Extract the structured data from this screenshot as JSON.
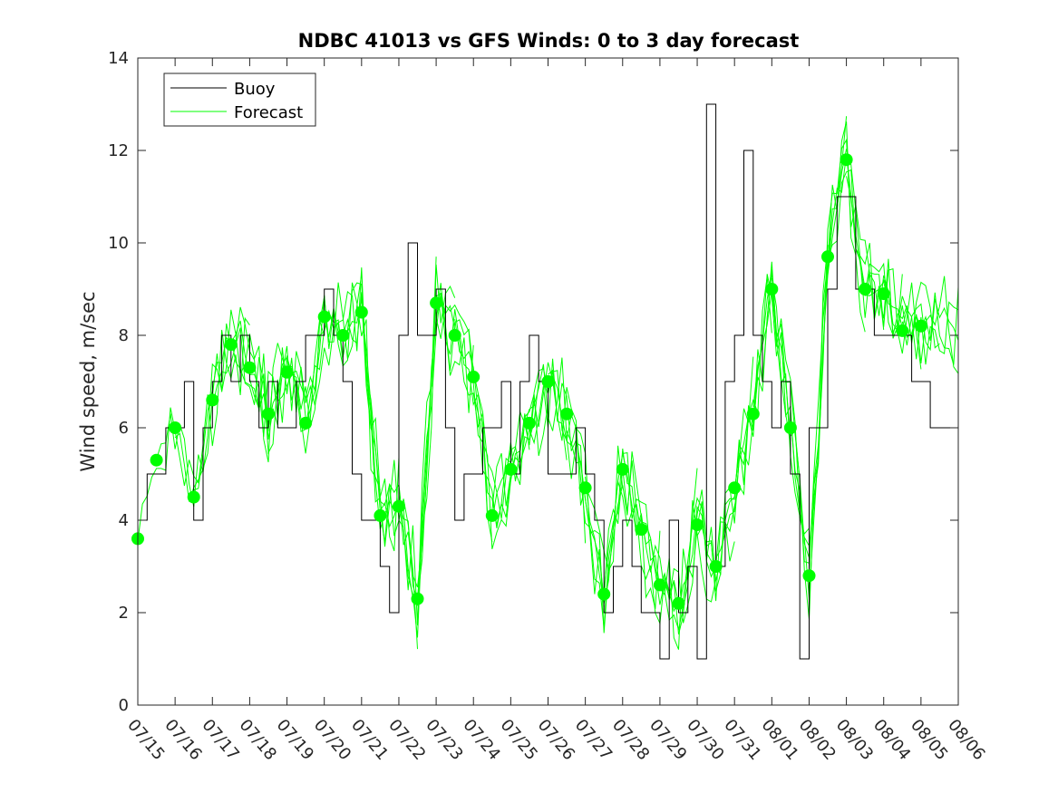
{
  "chart_data": {
    "type": "line",
    "title": "NDBC 41013 vs GFS Winds: 0 to 3 day forecast",
    "xlabel": "",
    "ylabel": "Wind speed, m/sec",
    "xlim": [
      "07/15",
      "08/06"
    ],
    "ylim": [
      0,
      14
    ],
    "x_tick_labels": [
      "07/15",
      "07/16",
      "07/17",
      "07/18",
      "07/19",
      "07/20",
      "07/21",
      "07/22",
      "07/23",
      "07/24",
      "07/25",
      "07/26",
      "07/27",
      "07/28",
      "07/29",
      "07/30",
      "07/31",
      "08/01",
      "08/02",
      "08/03",
      "08/04",
      "08/05",
      "08/06"
    ],
    "y_ticks": [
      0,
      2,
      4,
      6,
      8,
      10,
      12,
      14
    ],
    "grid": false,
    "legend": {
      "placement": "top-left",
      "entries": [
        "Buoy",
        "Forecast"
      ]
    },
    "colors": {
      "buoy": "#000000",
      "forecast": "#00ff00",
      "axes": "#262626"
    },
    "series": [
      {
        "name": "Buoy",
        "style": "step",
        "x_days": [
          0,
          0.25,
          0.5,
          0.75,
          1,
          1.25,
          1.5,
          1.75,
          2,
          2.25,
          2.5,
          2.75,
          3,
          3.25,
          3.5,
          3.75,
          4,
          4.25,
          4.5,
          4.75,
          5,
          5.25,
          5.5,
          5.75,
          6,
          6.25,
          6.5,
          6.75,
          7,
          7.25,
          7.5,
          7.75,
          8,
          8.25,
          8.5,
          8.75,
          9,
          9.25,
          9.5,
          9.75,
          10,
          10.25,
          10.5,
          10.75,
          11,
          11.25,
          11.5,
          11.75,
          12,
          12.25,
          12.5,
          12.75,
          13,
          13.25,
          13.5,
          13.75,
          14,
          14.25,
          14.5,
          14.75,
          15,
          15.25,
          15.5,
          15.75,
          16,
          16.25,
          16.5,
          16.75,
          17,
          17.25,
          17.5,
          17.75,
          18,
          18.25,
          18.5,
          18.75,
          19,
          19.25,
          19.5,
          19.75,
          20,
          20.25,
          20.5,
          20.75,
          21,
          21.25,
          21.5,
          21.75,
          22
        ],
        "values": [
          4,
          5,
          5,
          6,
          6,
          7,
          4,
          6,
          7,
          8,
          7,
          8,
          7,
          6,
          7,
          6,
          6,
          7,
          8,
          8,
          9,
          8,
          7,
          5,
          4,
          4,
          3,
          2,
          8,
          10,
          8,
          8,
          9,
          6,
          4,
          5,
          5,
          6,
          6,
          7,
          5,
          7,
          8,
          7,
          5,
          5,
          5,
          6,
          5,
          4,
          2,
          3,
          4,
          3,
          2,
          2,
          1,
          4,
          2,
          3,
          1,
          13,
          3,
          7,
          8,
          12,
          8,
          7,
          6,
          7,
          5,
          1,
          6,
          6,
          9,
          11,
          11,
          9,
          9,
          8,
          8,
          8,
          8,
          7,
          7,
          6,
          6,
          6,
          6
        ]
      },
      {
        "name": "Forecast",
        "style": "markers",
        "x_days": [
          0,
          0.5,
          1,
          1.5,
          2,
          2.5,
          3,
          3.5,
          4,
          4.5,
          5,
          5.5,
          6,
          6.5,
          7,
          7.5,
          8,
          8.5,
          9,
          9.5,
          10,
          10.5,
          11,
          11.5,
          12,
          12.5,
          13,
          13.5,
          14,
          14.5,
          15,
          15.5,
          16,
          16.5,
          17,
          17.5,
          18,
          18.5,
          19,
          19.5,
          20,
          20.5,
          21
        ],
        "values": [
          3.6,
          5.3,
          6,
          4.5,
          6.6,
          7.8,
          7.3,
          6.3,
          7.2,
          6.1,
          8.4,
          8,
          8.5,
          4.1,
          4.3,
          2.3,
          8.7,
          8,
          7.1,
          4.1,
          5.1,
          6.1,
          7,
          6.3,
          4.7,
          2.4,
          5.1,
          3.8,
          2.6,
          2.2,
          3.9,
          3,
          4.7,
          6.3,
          9,
          6,
          2.8,
          9.7,
          11.8,
          9,
          8.9,
          8.1,
          8.2
        ]
      }
    ]
  }
}
